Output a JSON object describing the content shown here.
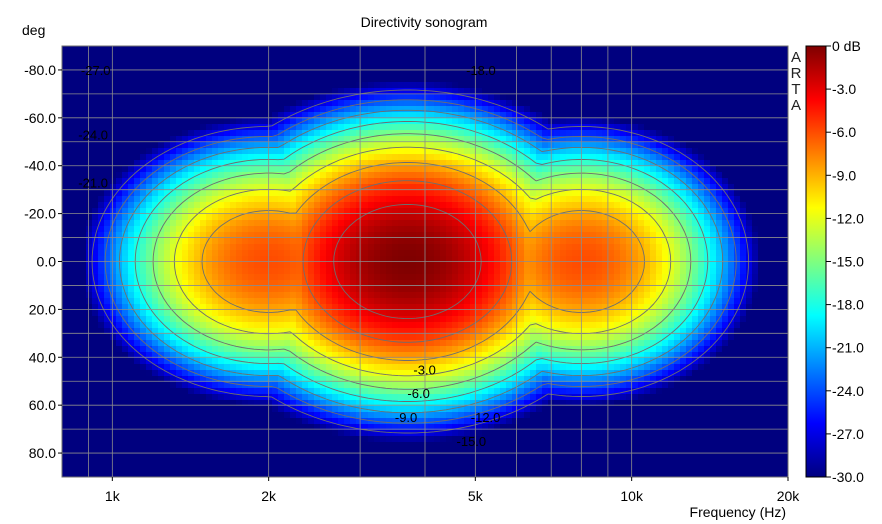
{
  "chart_data": {
    "type": "heatmap",
    "title": "Directivity sonogram",
    "xlabel": "Frequency (Hz)",
    "ylabel": "deg",
    "x_scale": "log",
    "xlim": [
      800,
      20000
    ],
    "ylim": [
      -90,
      90
    ],
    "x_ticks": [
      {
        "value": 1000,
        "label": "1k"
      },
      {
        "value": 2000,
        "label": "2k"
      },
      {
        "value": 5000,
        "label": "5k"
      },
      {
        "value": 10000,
        "label": "10k"
      },
      {
        "value": 20000,
        "label": "20k"
      }
    ],
    "y_ticks": [
      {
        "value": -80,
        "label": "-80.0"
      },
      {
        "value": -60,
        "label": "-60.0"
      },
      {
        "value": -40,
        "label": "-40.0"
      },
      {
        "value": -20,
        "label": "-20.0"
      },
      {
        "value": 0,
        "label": "0.0"
      },
      {
        "value": 20,
        "label": "20.0"
      },
      {
        "value": 40,
        "label": "40.0"
      },
      {
        "value": 60,
        "label": "60.0"
      },
      {
        "value": 80,
        "label": "80.0"
      }
    ],
    "colorbar": {
      "range_db": [
        -30,
        0
      ],
      "ticks": [
        {
          "value": 0,
          "label": "0 dB"
        },
        {
          "value": -3,
          "label": "-3.0"
        },
        {
          "value": -6,
          "label": "-6.0"
        },
        {
          "value": -9,
          "label": "-9.0"
        },
        {
          "value": -12,
          "label": "-12.0"
        },
        {
          "value": -15,
          "label": "-15.0"
        },
        {
          "value": -18,
          "label": "-18.0"
        },
        {
          "value": -21,
          "label": "-21.0"
        },
        {
          "value": -24,
          "label": "-24.0"
        },
        {
          "value": -27,
          "label": "-27.0"
        },
        {
          "value": -30,
          "label": "-30.0"
        }
      ],
      "colors": [
        "#00007f",
        "#0000ff",
        "#007fff",
        "#00ffff",
        "#7fff7f",
        "#ffff00",
        "#ff7f00",
        "#ff0000",
        "#7f0000"
      ]
    },
    "contour_levels_db": [
      -3,
      -6,
      -9,
      -12,
      -15,
      -18,
      -21,
      -24,
      -27
    ],
    "contour_labels": [
      {
        "label": "-27.0",
        "freq": 870,
        "deg": -80
      },
      {
        "label": "-24.0",
        "freq": 860,
        "deg": -53
      },
      {
        "label": "-21.0",
        "freq": 860,
        "deg": -33
      },
      {
        "label": "-18.0",
        "freq": 4800,
        "deg": -80
      },
      {
        "label": "-3.0",
        "freq": 3800,
        "deg": 45
      },
      {
        "label": "-6.0",
        "freq": 3700,
        "deg": 55
      },
      {
        "label": "-9.0",
        "freq": 3500,
        "deg": 65
      },
      {
        "label": "-12.0",
        "freq": 4900,
        "deg": 65
      },
      {
        "label": "-15.0",
        "freq": 4600,
        "deg": 75
      }
    ],
    "response_model": {
      "lobes": [
        {
          "freq": 3700,
          "deg": 0,
          "peak_db": 0,
          "spread_oct": 1.05,
          "spread_deg": 56
        },
        {
          "freq": 2000,
          "deg": 0,
          "peak_db": -6,
          "spread_oct": 0.95,
          "spread_deg": 50
        },
        {
          "freq": 8000,
          "deg": 0,
          "peak_db": -6,
          "spread_oct": 0.9,
          "spread_deg": 50
        }
      ],
      "freq_range_hz": [
        900,
        18000
      ]
    },
    "watermark": "ARTA",
    "grid": true
  }
}
